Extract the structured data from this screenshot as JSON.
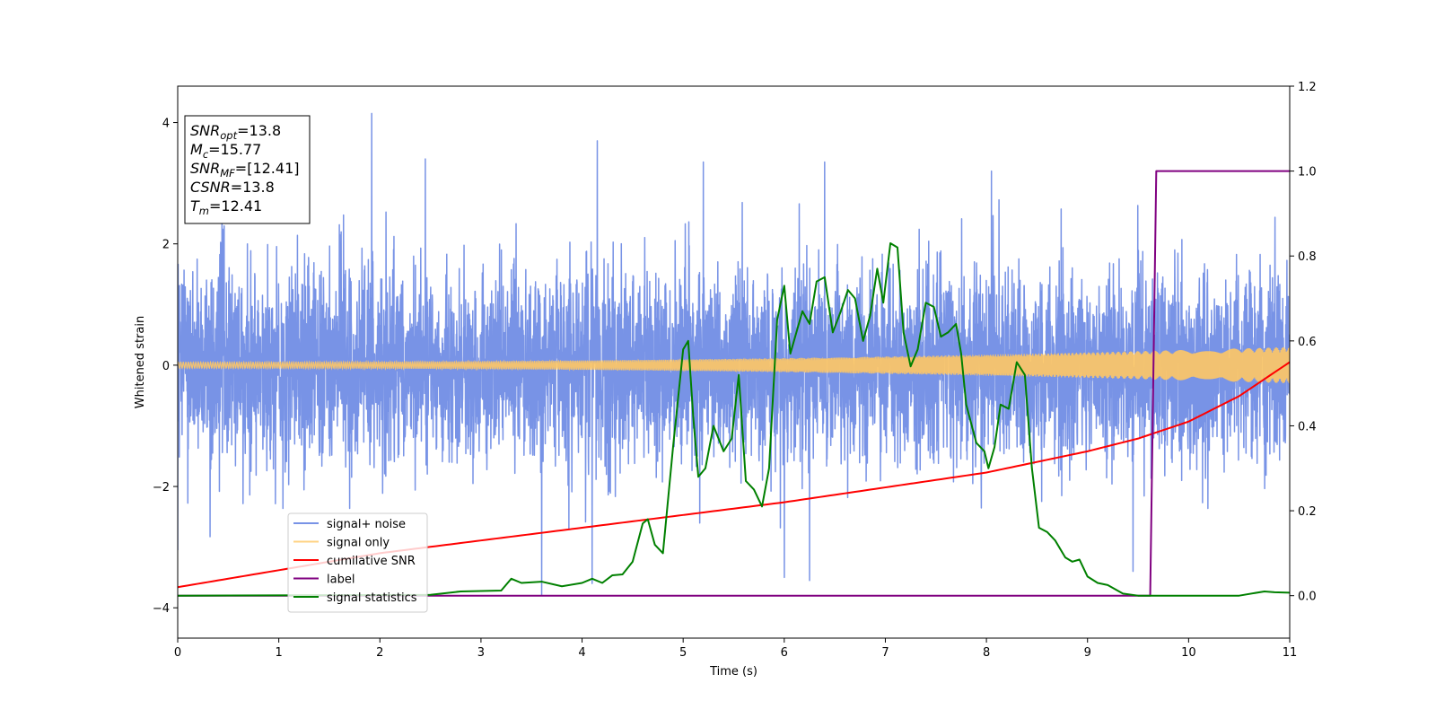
{
  "chart_data": {
    "type": "line",
    "xlabel": "Time (s)",
    "ylabel": "Whitened strain",
    "xlim": [
      0,
      11
    ],
    "ylim_left": [
      -4.5,
      4.6
    ],
    "ylim_right": [
      -0.1,
      1.2
    ],
    "x_ticks": [
      0,
      1,
      2,
      3,
      4,
      5,
      6,
      7,
      8,
      9,
      10,
      11
    ],
    "y_left_ticks": [
      -4,
      -2,
      0,
      2,
      4
    ],
    "y_right_ticks": [
      "0.0",
      "0.2",
      "0.4",
      "0.6",
      "0.8",
      "1.0",
      "1.2"
    ],
    "grid": false,
    "legend_placement": "lower-left",
    "info_box": [
      {
        "sym": "SNR",
        "sub": "opt",
        "value": "=13.8"
      },
      {
        "sym": "M",
        "sub": "c",
        "value": "=15.77"
      },
      {
        "sym": "SNR",
        "sub": "MF",
        "value": "=[12.41]"
      },
      {
        "sym": "CSNR",
        "sub": "",
        "value": "=13.8"
      },
      {
        "sym": "T",
        "sub": "m",
        "value": "=12.41"
      }
    ],
    "series": [
      {
        "name": "signal+ noise",
        "axis": "left",
        "color": "#7893e6",
        "description_kind": "noise",
        "std": 0.78,
        "extremes": [
          {
            "x": 1.92,
            "y": 4.15
          },
          {
            "x": 4.15,
            "y": 3.7
          },
          {
            "x": 2.45,
            "y": 3.4
          },
          {
            "x": 5.2,
            "y": 3.35
          },
          {
            "x": 6.4,
            "y": 3.35
          },
          {
            "x": 8.05,
            "y": 3.2
          },
          {
            "x": 3.6,
            "y": -3.8
          },
          {
            "x": 4.1,
            "y": -3.6
          },
          {
            "x": 6.0,
            "y": -3.5
          },
          {
            "x": 6.25,
            "y": -3.55
          },
          {
            "x": 9.45,
            "y": -3.4
          },
          {
            "x": 0.0,
            "y": -3.05
          }
        ]
      },
      {
        "name": "signal only",
        "axis": "left",
        "color": "#ffc864",
        "description_kind": "chirp",
        "amplitude_start": 0.05,
        "amplitude_end": 0.3
      },
      {
        "name": "cumilative SNR",
        "axis": "right",
        "color": "#ff0000",
        "x": [
          0,
          1,
          2,
          3,
          4,
          5,
          6,
          7,
          8,
          9,
          9.5,
          10,
          10.5,
          11
        ],
        "y": [
          0.02,
          0.06,
          0.1,
          0.13,
          0.16,
          0.19,
          0.22,
          0.255,
          0.29,
          0.34,
          0.37,
          0.41,
          0.47,
          0.55
        ]
      },
      {
        "name": "label",
        "axis": "right",
        "color": "#800080",
        "x": [
          0,
          9.62,
          9.68,
          11
        ],
        "y": [
          0.0,
          0.0,
          1.0,
          1.0
        ]
      },
      {
        "name": "signal statistics",
        "axis": "right",
        "color": "#008000",
        "x": [
          0,
          2.5,
          2.8,
          3.2,
          3.3,
          3.4,
          3.6,
          3.8,
          4.0,
          4.1,
          4.2,
          4.3,
          4.4,
          4.5,
          4.6,
          4.65,
          4.72,
          4.8,
          4.9,
          5.0,
          5.05,
          5.1,
          5.15,
          5.22,
          5.3,
          5.4,
          5.48,
          5.55,
          5.62,
          5.7,
          5.78,
          5.85,
          5.93,
          6.0,
          6.06,
          6.12,
          6.18,
          6.25,
          6.32,
          6.4,
          6.48,
          6.56,
          6.63,
          6.7,
          6.78,
          6.85,
          6.92,
          6.98,
          7.05,
          7.12,
          7.18,
          7.25,
          7.32,
          7.4,
          7.48,
          7.55,
          7.62,
          7.7,
          7.75,
          7.8,
          7.9,
          7.98,
          8.02,
          8.08,
          8.14,
          8.22,
          8.3,
          8.38,
          8.45,
          8.52,
          8.6,
          8.68,
          8.78,
          8.85,
          8.92,
          9.0,
          9.1,
          9.2,
          9.35,
          9.5,
          9.6,
          10.5,
          10.75,
          10.85,
          11.0
        ],
        "y": [
          0.0,
          0.002,
          0.01,
          0.012,
          0.04,
          0.03,
          0.033,
          0.022,
          0.03,
          0.04,
          0.03,
          0.048,
          0.05,
          0.08,
          0.17,
          0.18,
          0.12,
          0.1,
          0.35,
          0.58,
          0.6,
          0.42,
          0.28,
          0.3,
          0.4,
          0.34,
          0.37,
          0.52,
          0.27,
          0.25,
          0.21,
          0.3,
          0.65,
          0.73,
          0.57,
          0.62,
          0.67,
          0.64,
          0.74,
          0.75,
          0.62,
          0.67,
          0.72,
          0.7,
          0.6,
          0.66,
          0.77,
          0.69,
          0.83,
          0.82,
          0.62,
          0.54,
          0.58,
          0.69,
          0.68,
          0.61,
          0.62,
          0.64,
          0.57,
          0.45,
          0.36,
          0.34,
          0.3,
          0.35,
          0.45,
          0.44,
          0.55,
          0.52,
          0.3,
          0.16,
          0.15,
          0.13,
          0.09,
          0.08,
          0.085,
          0.045,
          0.03,
          0.025,
          0.005,
          0.0,
          0.0,
          0.0,
          0.01,
          0.008,
          0.007
        ]
      }
    ]
  }
}
